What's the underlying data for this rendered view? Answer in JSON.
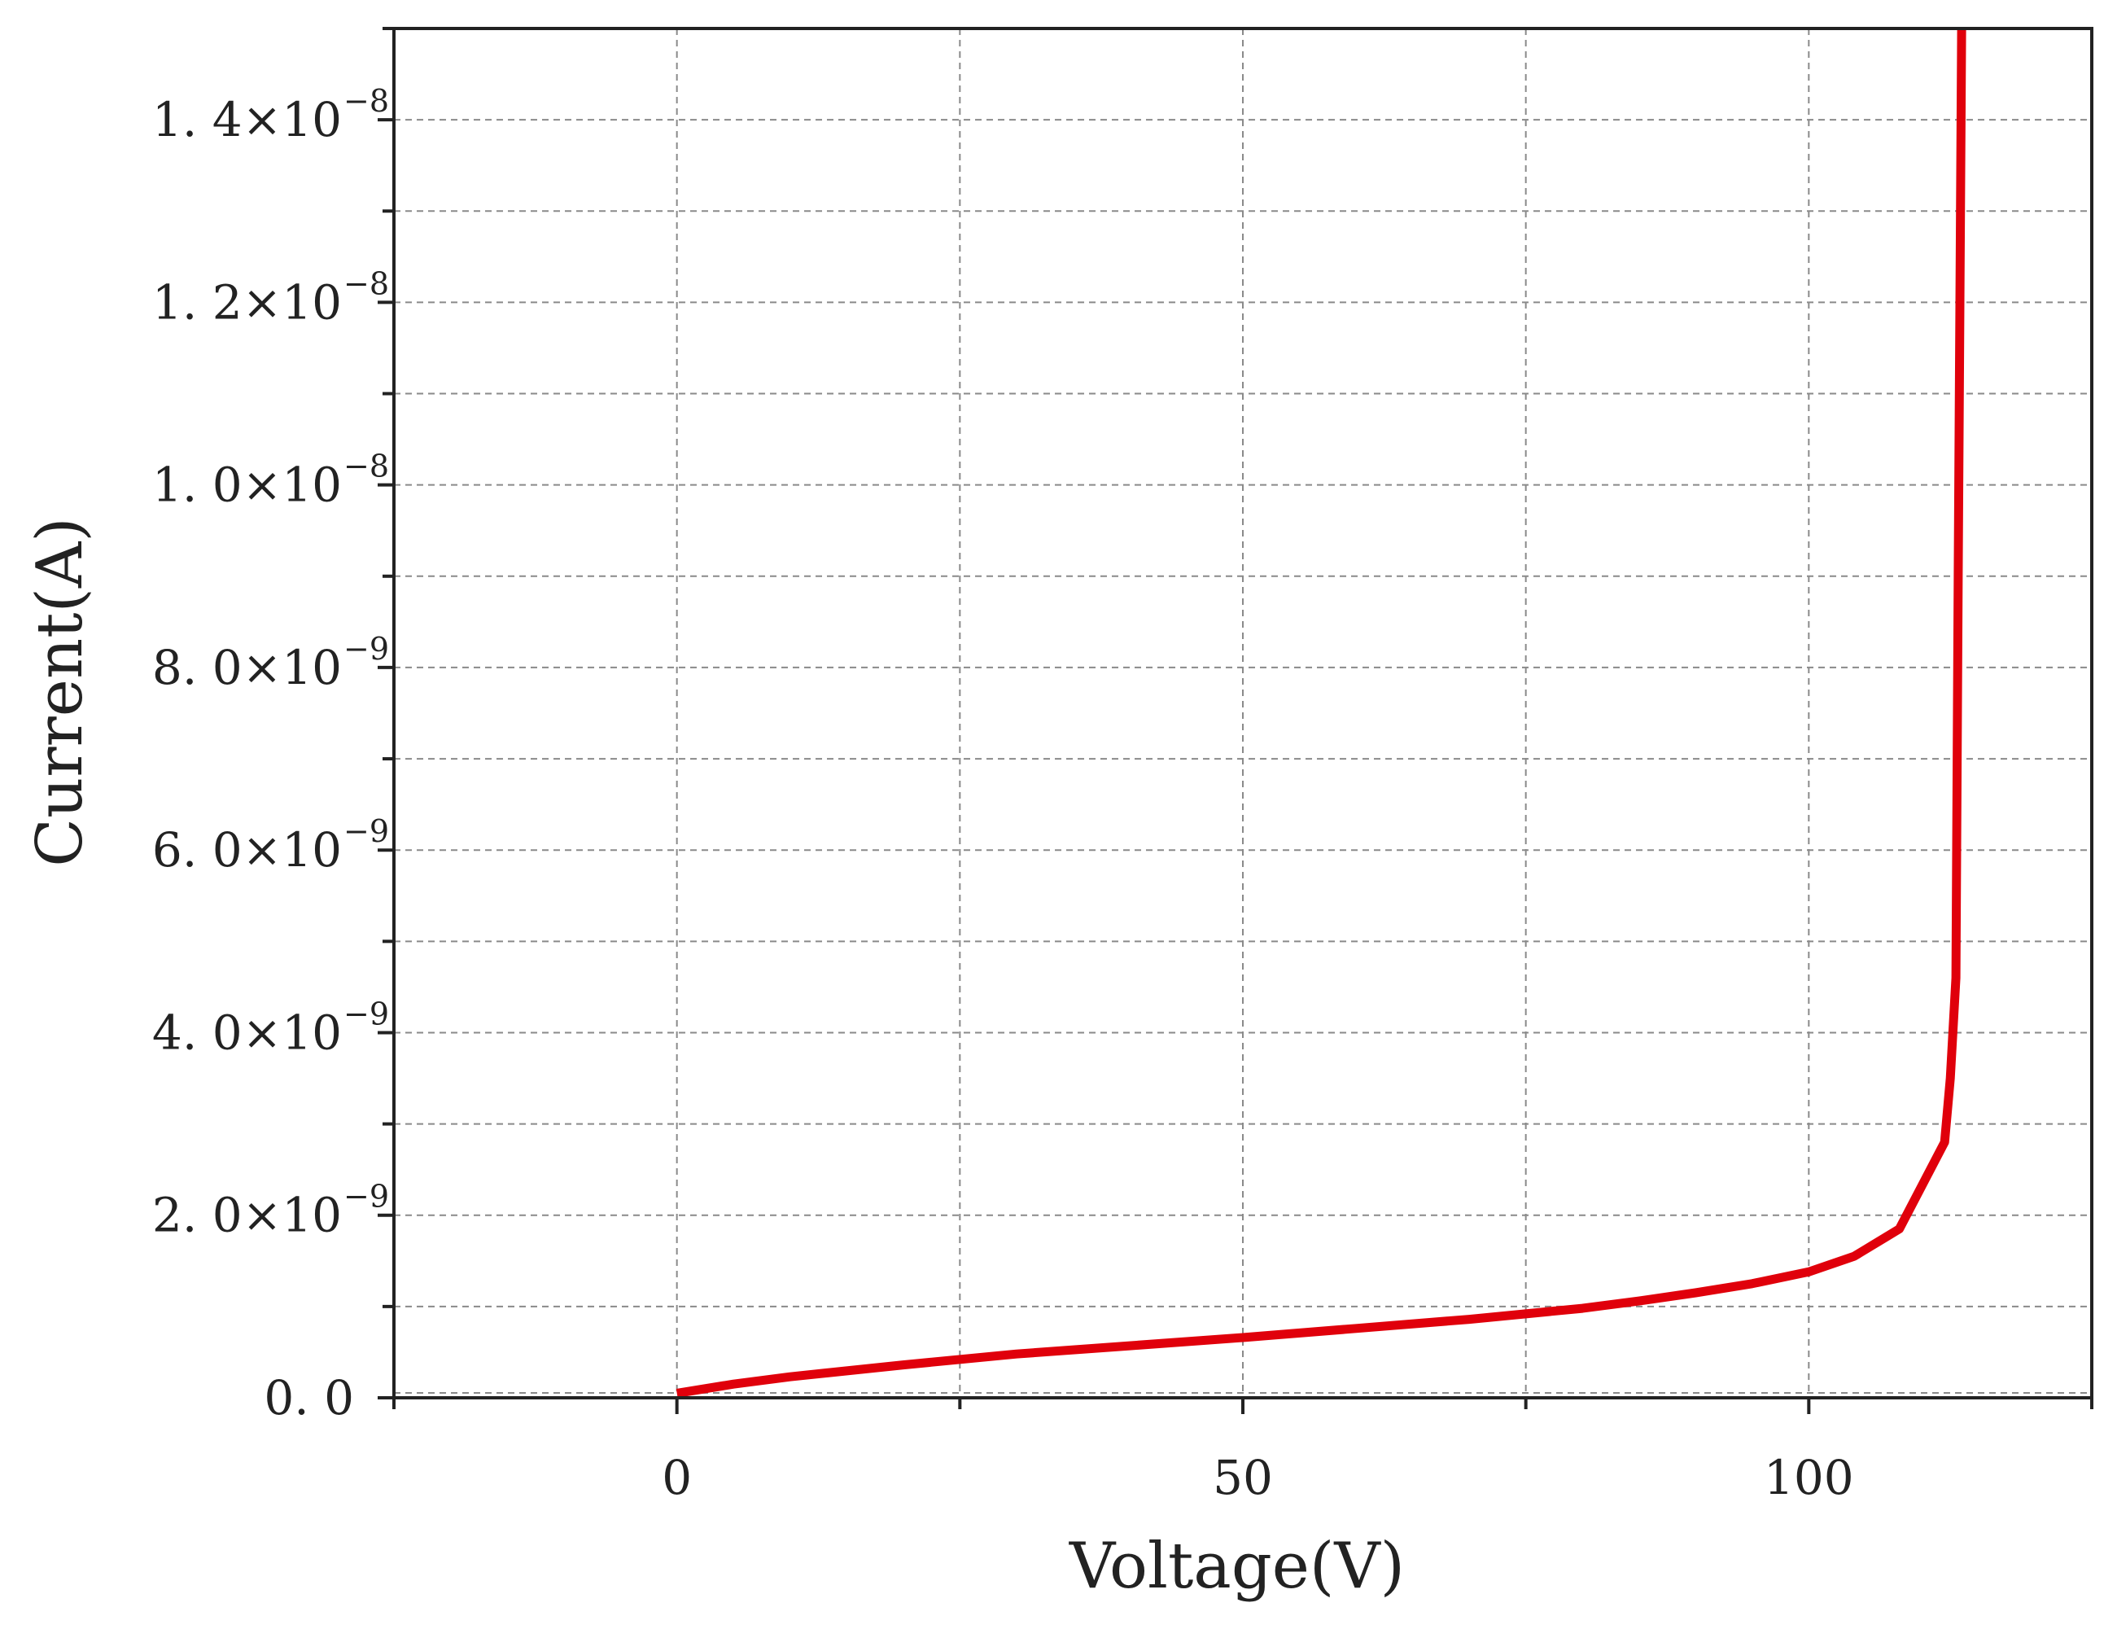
{
  "chart_data": {
    "type": "line",
    "xlabel": "Voltage(V)",
    "ylabel": "Current(A)",
    "xlim": [
      -25,
      125
    ],
    "ylim": [
      0,
      1.5e-08
    ],
    "grid": true,
    "x_ticks": [
      {
        "value": 0,
        "label": "0"
      },
      {
        "value": 50,
        "label": "50"
      },
      {
        "value": 100,
        "label": "100"
      }
    ],
    "y_ticks": [
      {
        "value": 0,
        "mantissa": "0. 0",
        "exponent": ""
      },
      {
        "value": 2e-09,
        "mantissa": "2. 0×10",
        "exponent": "−9"
      },
      {
        "value": 4e-09,
        "mantissa": "4. 0×10",
        "exponent": "−9"
      },
      {
        "value": 6e-09,
        "mantissa": "6. 0×10",
        "exponent": "−9"
      },
      {
        "value": 8e-09,
        "mantissa": "8. 0×10",
        "exponent": "−9"
      },
      {
        "value": 1e-08,
        "mantissa": "1. 0×10",
        "exponent": "−8"
      },
      {
        "value": 1.2e-08,
        "mantissa": "1. 2×10",
        "exponent": "−8"
      },
      {
        "value": 1.4e-08,
        "mantissa": "1. 4×10",
        "exponent": "−8"
      }
    ],
    "series": [
      {
        "color": "#e0000b",
        "x": [
          0,
          5,
          10,
          20,
          30,
          40,
          50,
          60,
          70,
          80,
          85,
          90,
          95,
          100,
          104,
          108,
          112,
          112.5,
          113,
          113.2,
          113.5
        ],
        "y": [
          5e-11,
          1.5e-10,
          2.3e-10,
          3.6e-10,
          4.8e-10,
          5.7e-10,
          6.6e-10,
          7.6e-10,
          8.6e-10,
          9.8e-10,
          1.06e-09,
          1.15e-09,
          1.25e-09,
          1.38e-09,
          1.55e-09,
          1.85e-09,
          2.8e-09,
          3.5e-09,
          4.6e-09,
          9e-09,
          1.5e-08
        ]
      }
    ]
  }
}
